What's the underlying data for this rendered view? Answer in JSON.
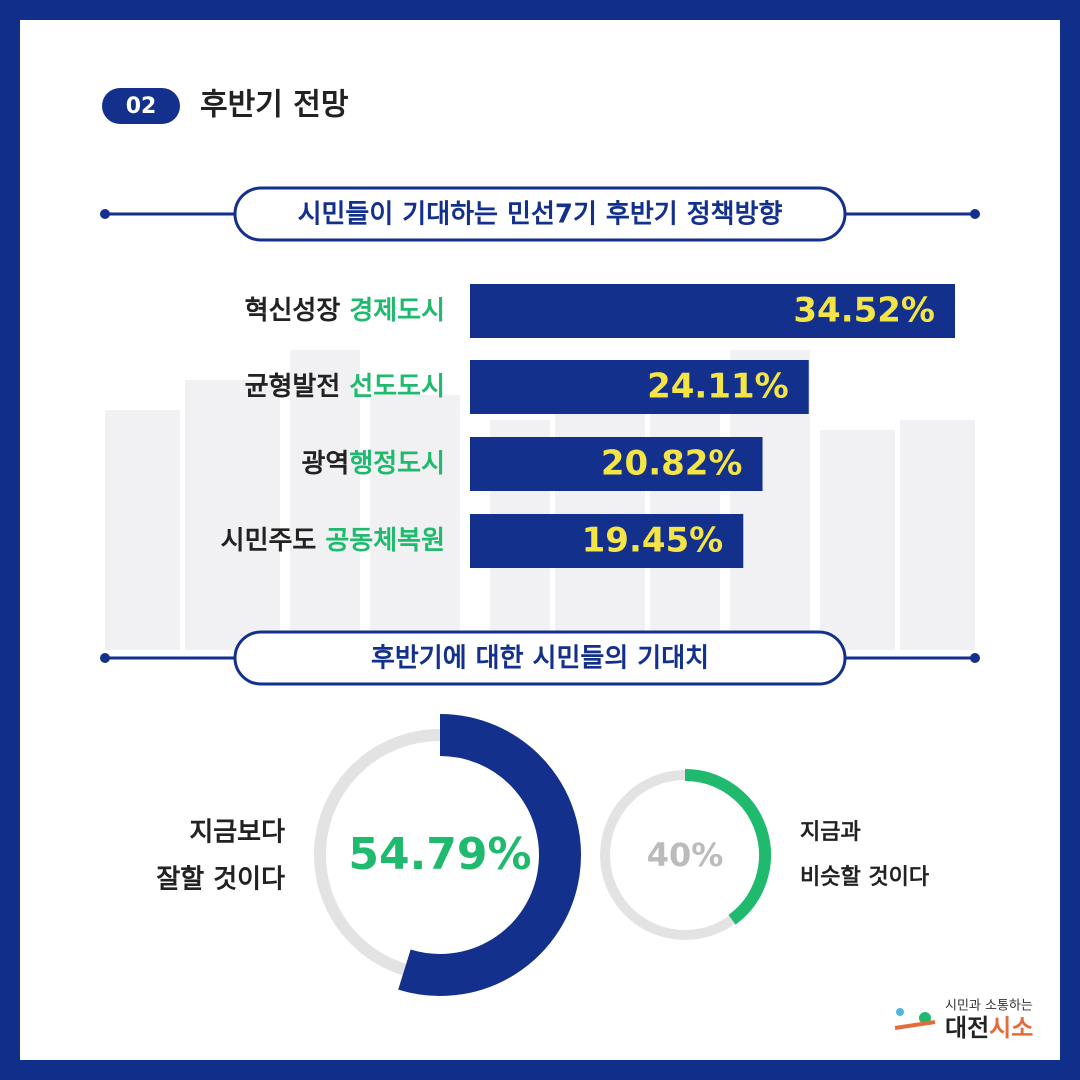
{
  "header": {
    "badge": "02",
    "title": "후반기 전망"
  },
  "chart_data": [
    {
      "type": "bar",
      "title": "시민들이 기대하는 민선7기 후반기 정책방향",
      "categories": [
        [
          "혁신성장 ",
          "경제도시"
        ],
        [
          "균형발전 ",
          "선도도시"
        ],
        [
          "광역",
          "행정도시"
        ],
        [
          "시민주도 ",
          "공동체복원"
        ]
      ],
      "values": [
        34.52,
        24.11,
        20.82,
        19.45
      ],
      "value_labels": [
        "34.52%",
        "24.11%",
        "20.82%",
        "19.45%"
      ],
      "color": "#12308c",
      "label_color": "#f4e445"
    },
    {
      "type": "donut",
      "title": "후반기에 대한 시민들의 기대치",
      "categories": [
        [
          "지금보다",
          "잘할 것이다"
        ],
        [
          "지금과",
          "비슷할 것이다"
        ]
      ],
      "values": [
        54.79,
        40
      ],
      "value_labels": [
        "54.79%",
        "40%"
      ],
      "colors": [
        "#12308c",
        "#1fba6e"
      ]
    }
  ],
  "logo": {
    "tagline": "시민과 소통하는",
    "name": [
      "대전",
      "시소"
    ]
  }
}
